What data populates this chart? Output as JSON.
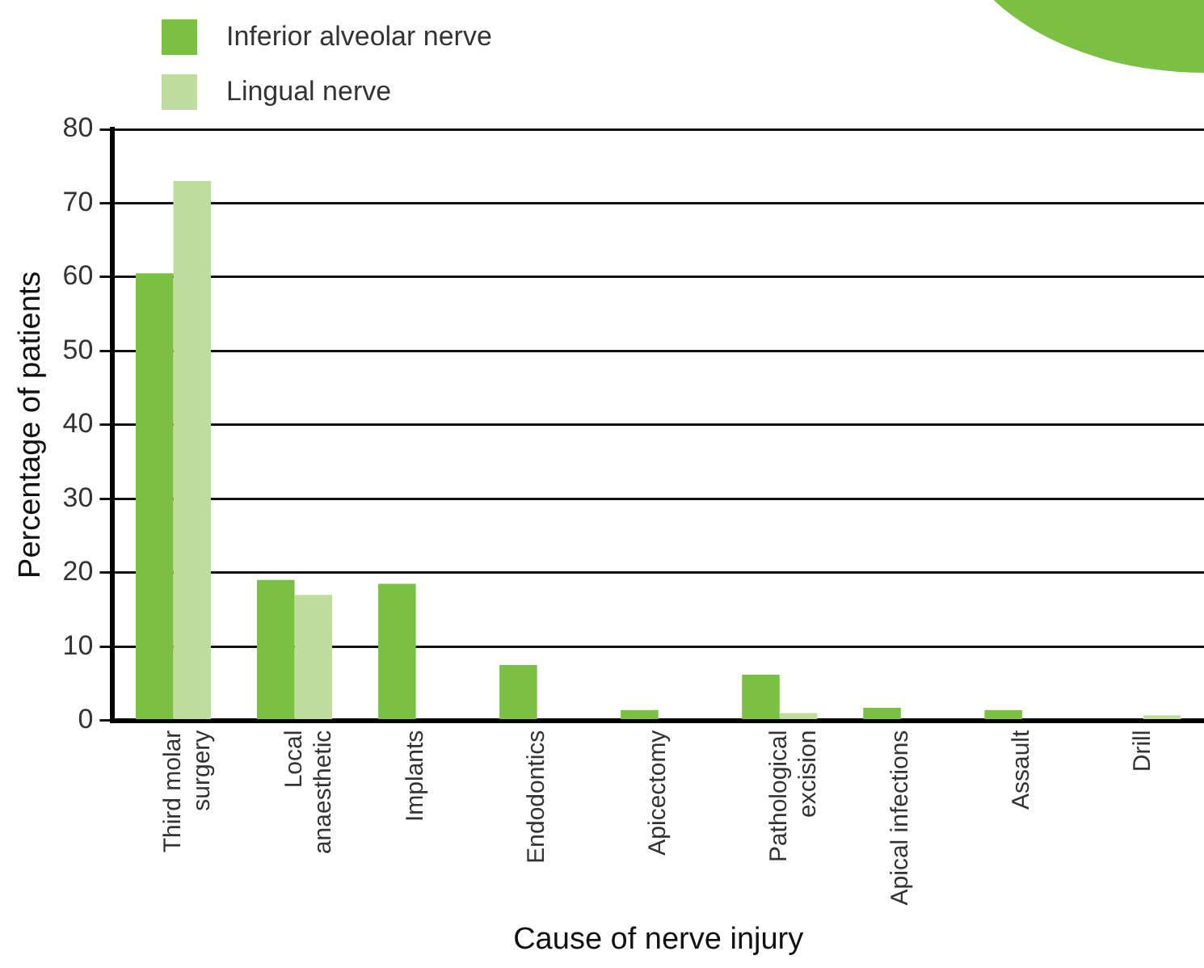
{
  "chart_data": {
    "type": "bar",
    "xlabel": "Cause of nerve injury",
    "ylabel": "Percentage of patients",
    "categories": [
      "Third molar\nsurgery",
      "Local\nanaesthetic",
      "Implants",
      "Endodontics",
      "Apicectomy",
      "Pathological\nexcision",
      "Apical infections",
      "Assault",
      "Drill"
    ],
    "series": [
      {
        "name": "Inferior alveolar nerve",
        "color": "#7ac143",
        "values": [
          60.5,
          19,
          18.5,
          7.5,
          1.4,
          6.2,
          1.7,
          1.4,
          0
        ]
      },
      {
        "name": "Lingual nerve",
        "color": "#bfde9e",
        "values": [
          73,
          17,
          0,
          0,
          0,
          1,
          0,
          0,
          0.7
        ]
      }
    ],
    "ylim": [
      0,
      80
    ],
    "yticks": [
      0,
      10,
      20,
      30,
      40,
      50,
      60,
      70,
      80
    ],
    "grid": "y",
    "legend": "top left"
  }
}
